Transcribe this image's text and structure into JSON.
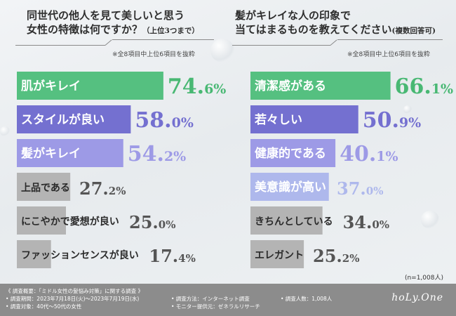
{
  "chart_data": [
    {
      "type": "bar",
      "title_line1": "同世代の他人を見て美しいと思う",
      "title_line2": "女性の特徴は何ですか？",
      "title_suffix": "（上位3つまで）",
      "note": "※全8項目中上位6項目を抜粋",
      "categories": [
        "肌がキレイ",
        "スタイルが良い",
        "髪がキレイ",
        "上品である",
        "にこやかで愛想が良い",
        "ファッションセンスが良い"
      ],
      "values": [
        74.6,
        58.0,
        54.2,
        27.2,
        25.0,
        17.4
      ],
      "value_labels": [
        [
          "74.",
          "6%"
        ],
        [
          "58.",
          "0%"
        ],
        [
          "54.",
          "2%"
        ],
        [
          "27.",
          "2%"
        ],
        [
          "25.",
          "0%"
        ],
        [
          "17.",
          "4%"
        ]
      ],
      "colors": [
        "#55c080",
        "#7470d0",
        "#9d9ae6",
        "#b4b4b4",
        "#b4b4b4",
        "#b4b4b4"
      ],
      "xlim": [
        0,
        100
      ]
    },
    {
      "type": "bar",
      "title_line1": "髪がキレイな人の印象で",
      "title_line2": "当てはまるものを教えてください",
      "title_suffix": "(複数回答可)",
      "note": "※全8項目中上位6項目を抜粋",
      "categories": [
        "清潔感がある",
        "若々しい",
        "健康的である",
        "美意識が高い",
        "きちんとしている",
        "エレガント"
      ],
      "values": [
        66.1,
        50.9,
        40.1,
        37.0,
        34.0,
        25.2
      ],
      "value_labels": [
        [
          "66.",
          "1%"
        ],
        [
          "50.",
          "9%"
        ],
        [
          "40.",
          "1%"
        ],
        [
          "37.",
          "0%"
        ],
        [
          "34.",
          "0%"
        ],
        [
          "25.",
          "2%"
        ]
      ],
      "colors": [
        "#55c080",
        "#7470d0",
        "#9d9ae6",
        "#aeb8ec",
        "#b4b4b4",
        "#b4b4b4"
      ],
      "xlim": [
        0,
        100
      ]
    }
  ],
  "sample_note": "(n=1,008人)",
  "footer": {
    "overview": "《 調査概要：「ミドル女性の髪悩み対策」に関する調査 》",
    "period": "• 調査期間：2023年7月18日(火)～2023年7月19日(水)",
    "target": "• 調査対象：40代～50代の女性",
    "method": "• 調査方法：インターネット調査",
    "provider": "• モニター提供元：ゼネラルリサーチ",
    "count": "• 調査人数：1,008人",
    "logo": "hoLy.One"
  }
}
